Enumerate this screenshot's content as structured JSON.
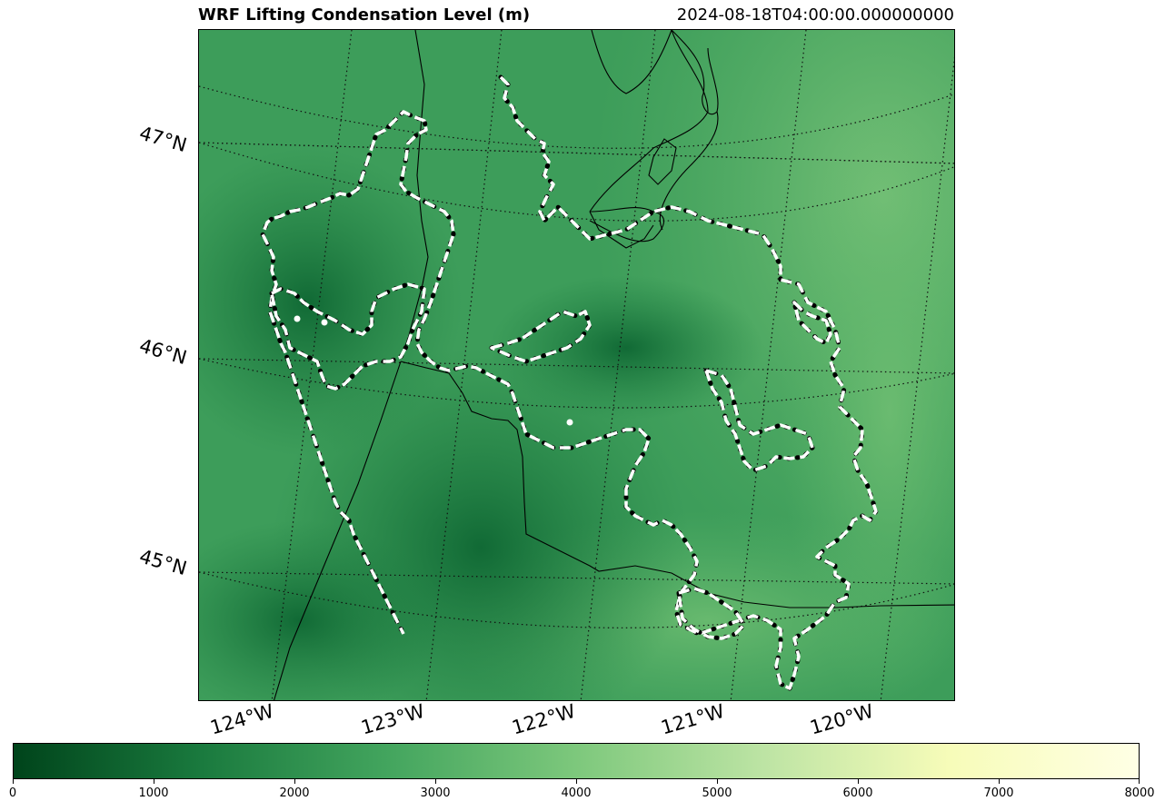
{
  "title": "WRF Lifting Condensation Level (m)",
  "valid_time": "2024-08-18T04:00:00.000000000",
  "map": {
    "colormap": "green (dark = low, light = high)",
    "contour_style": "white dashed with black dots",
    "lat_labels": [
      "47°N",
      "46°N",
      "45°N"
    ],
    "lon_labels": [
      "124°W",
      "123°W",
      "122°W",
      "121°W",
      "120°W"
    ]
  },
  "colorbar": {
    "min": 0,
    "max": 8000,
    "ticks": [
      "0",
      "1000",
      "2000",
      "3000",
      "4000",
      "5000",
      "6000",
      "7000",
      "8000"
    ],
    "colors": [
      "#00441b",
      "#1a7a3e",
      "#43a55e",
      "#7dc87c",
      "#bde4a4",
      "#f7fcb9",
      "#ffffe5"
    ]
  }
}
